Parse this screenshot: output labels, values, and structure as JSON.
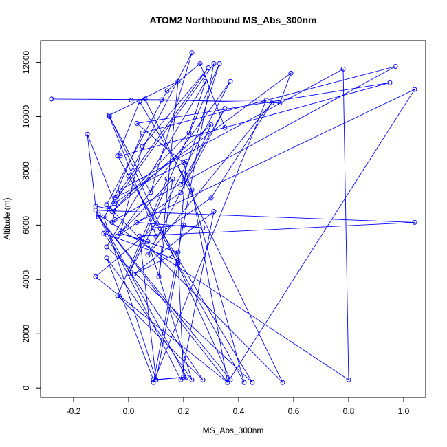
{
  "chart_data": {
    "type": "line",
    "title": "ATOM2 Northbound MS_Abs_300nm",
    "xlabel": "MS_Abs_300nm",
    "ylabel": "Altitude (m)",
    "xlim": [
      -0.32,
      1.08
    ],
    "ylim": [
      -350,
      12800
    ],
    "x_ticks": [
      -0.2,
      0.0,
      0.2,
      0.4,
      0.6,
      0.8,
      1.0
    ],
    "x_tick_labels": [
      "-0.2",
      "0.0",
      "0.2",
      "0.4",
      "0.6",
      "0.8",
      "1.0"
    ],
    "y_ticks": [
      0,
      2000,
      4000,
      6000,
      8000,
      10000,
      12000
    ],
    "y_tick_labels": [
      "0",
      "2000",
      "4000",
      "6000",
      "8000",
      "10000",
      "12000"
    ],
    "grid": false,
    "line_color": "#0000ff",
    "marker": "open-circle",
    "series": [
      {
        "x": [
          -0.28,
          0.12,
          0.55,
          0.59,
          -0.05,
          -0.15,
          -0.12,
          -0.07,
          0.05,
          0.97,
          -0.05,
          -0.06,
          -0.03,
          0.78,
          0.8,
          -0.11,
          0.21,
          0.1,
          -0.09,
          0.31,
          0.09,
          0.5,
          0.01,
          0.06,
          0.56,
          -0.08,
          0.14,
          0.26,
          0.35,
          -0.03,
          0.95,
          0.03,
          0.2,
          0.42,
          -0.04,
          0.04,
          0.23,
          0.36,
          -0.12,
          0.09,
          0.2,
          0.27,
          0.03,
          1.04,
          0.36,
          -0.11,
          0.37,
          -0.07,
          0.18,
          0.11,
          0.16,
          -0.04,
          0.19,
          0.3,
          -0.06,
          0.22,
          0.28,
          -0.08,
          0.45,
          0.0,
          0.23,
          0.08,
          -0.07,
          0.1,
          0.3,
          0.52,
          0.07,
          0.35,
          0.19,
          0.33,
          0.0,
          0.37,
          -0.03,
          0.05,
          0.29,
          -0.05,
          0.21,
          0.18,
          0.1,
          0.04,
          1.04,
          -0.12,
          0.19,
          0.31,
          0.02,
          0.18,
          -0.03,
          0.07,
          0.23,
          -0.08,
          0.09,
          0.2,
          0.18,
          -0.09,
          0.27,
          -0.04,
          0.14
        ],
        "y": [
          10650,
          10620,
          10500,
          11600,
          6800,
          9350,
          6700,
          6600,
          9400,
          11850,
          6200,
          6100,
          7300,
          11750,
          300,
          6400,
          400,
          300,
          6300,
          11950,
          200,
          10600,
          10600,
          10650,
          200,
          6750,
          10950,
          11950,
          9600,
          8550,
          11250,
          9750,
          8300,
          200,
          8550,
          10550,
          7300,
          200,
          4100,
          5900,
          6000,
          5900,
          6100,
          11000,
          200,
          6300,
          300,
          10050,
          11300,
          4100,
          7700,
          5600,
          7200,
          9700,
          6500,
          9400,
          11300,
          5200,
          200,
          7800,
          12350,
          7200,
          10000,
          5600,
          7000,
          10500,
          4900,
          10300,
          7500,
          11950,
          4200,
          11300,
          5700,
          8900,
          11800,
          7000,
          8350,
          4600,
          300,
          5600,
          6100,
          6550,
          300,
          6500,
          4200,
          5000,
          5700,
          5400,
          300,
          4800,
          300,
          400,
          4700,
          5700,
          300,
          3400,
          7700
        ]
      }
    ]
  }
}
